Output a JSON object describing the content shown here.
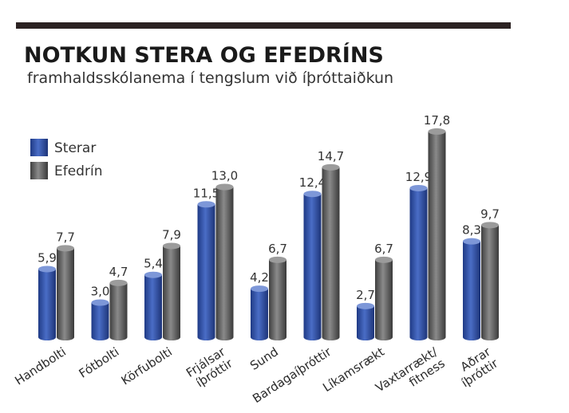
{
  "chart_data": {
    "type": "bar",
    "title": "NOTKUN STERA OG EFEDRÍNS",
    "subtitle": "framhaldsskólanema í tengslum við íþróttaiðkun",
    "categories": [
      [
        "Handbolti"
      ],
      [
        "Fótbolti"
      ],
      [
        "Körfubolti"
      ],
      [
        "Frjálsar",
        "íþróttir"
      ],
      [
        "Sund"
      ],
      [
        "Bardagaíþróttir"
      ],
      [
        "Líkamsrækt"
      ],
      [
        "Vaxtarrækt/",
        "fitness"
      ],
      [
        "Aðrar",
        "íþróttir"
      ]
    ],
    "series": [
      {
        "name": "Sterar",
        "color": "#2f4fa3",
        "values": [
          5.9,
          3.0,
          5.4,
          11.5,
          4.2,
          12.4,
          2.7,
          12.9,
          8.3
        ],
        "labels": [
          "5,9",
          "3,0",
          "5,4",
          "11,5",
          "4,2",
          "12,4",
          "2,7",
          "12,9",
          "8,3"
        ]
      },
      {
        "name": "Efedrín",
        "color": "#5c5c5c",
        "values": [
          7.7,
          4.7,
          7.9,
          13.0,
          6.7,
          14.7,
          6.7,
          17.8,
          9.7
        ],
        "labels": [
          "7,7",
          "4,7",
          "7,9",
          "13,0",
          "6,7",
          "14,7",
          "6,7",
          "17,8",
          "9,7"
        ]
      }
    ],
    "ylim": [
      0,
      18
    ],
    "legend": "top-left",
    "grid": false
  }
}
